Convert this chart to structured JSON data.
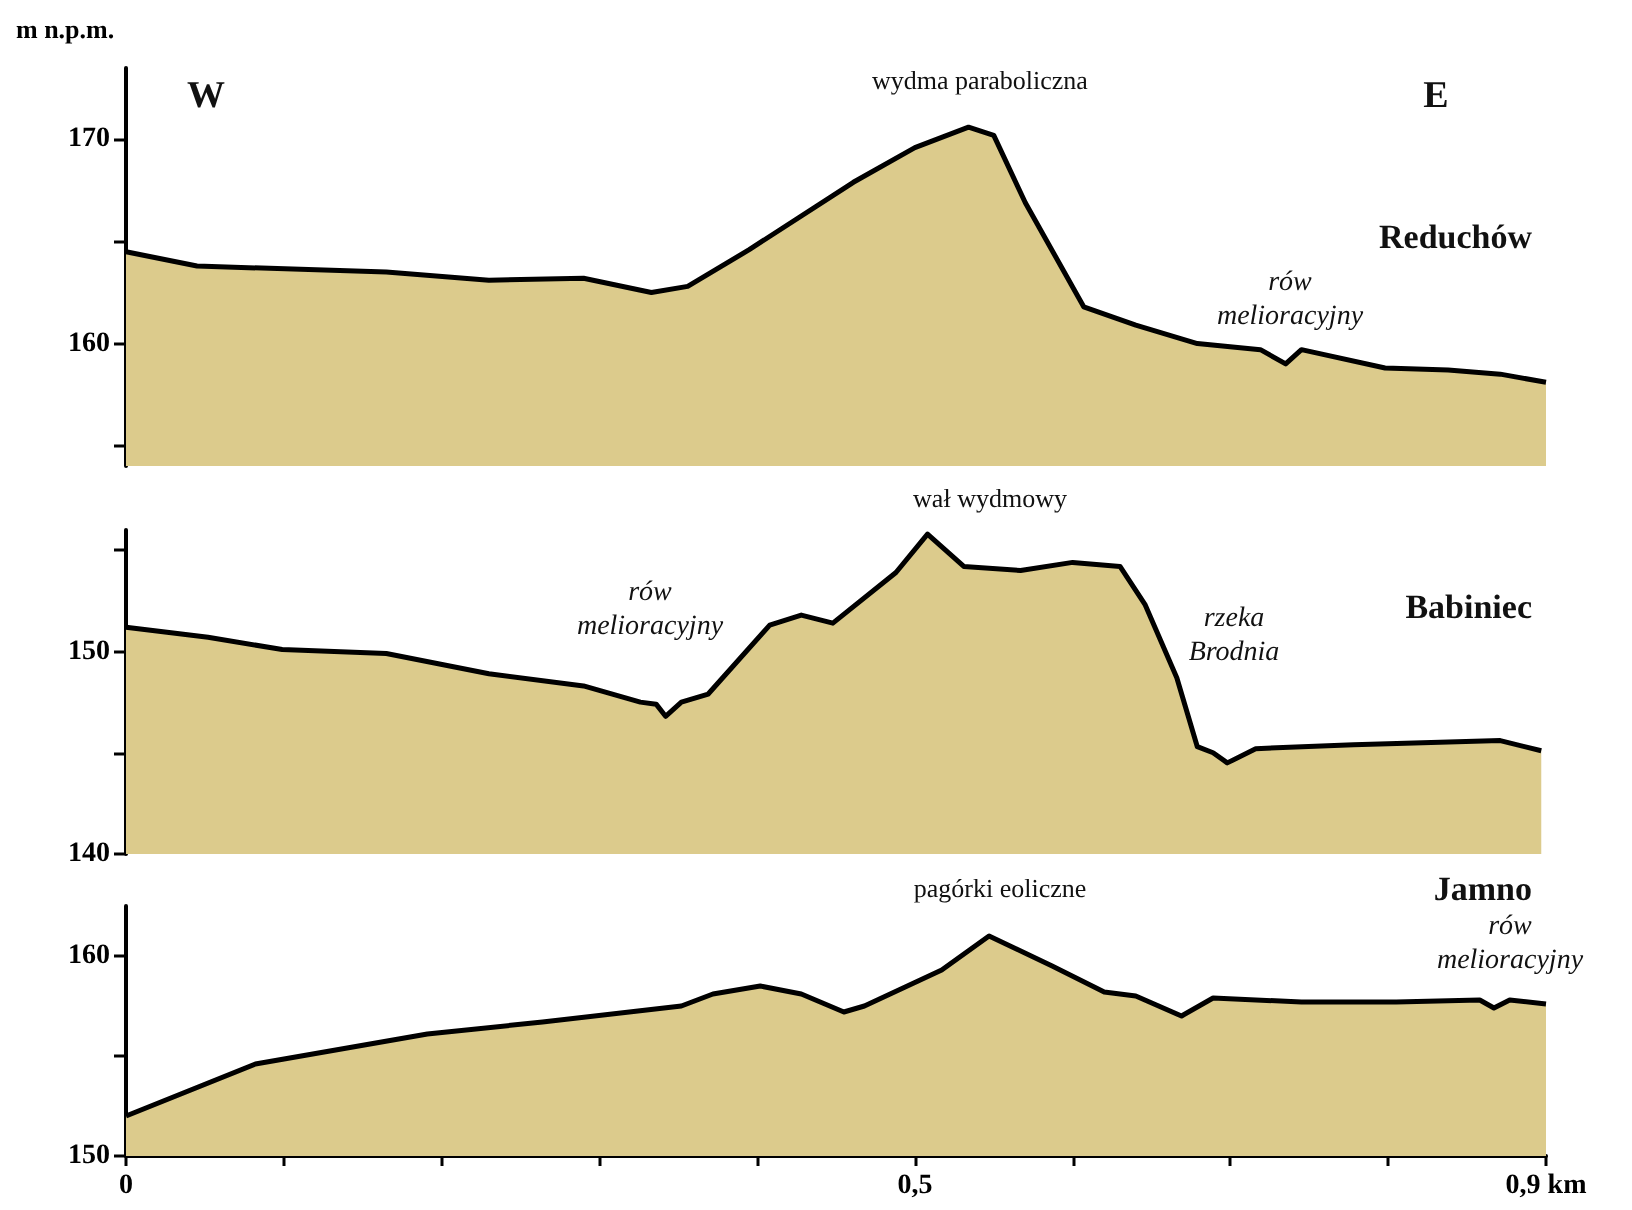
{
  "chart_data": [
    {
      "type": "area",
      "title": "Reduchów",
      "ylabel": "m n.p.m.",
      "tick_labels": "y",
      "color": "#dccb8c",
      "marker": "none",
      "grid": false,
      "x": [
        0,
        0.045,
        0.165,
        0.23,
        0.29,
        0.333,
        0.356,
        0.395,
        0.461,
        0.5,
        0.534,
        0.55,
        0.57,
        0.607,
        0.64,
        0.679,
        0.719,
        0.735,
        0.745,
        0.798,
        0.838,
        0.871,
        0.9
      ],
      "values": [
        164.5,
        163.8,
        163.5,
        163.1,
        163.2,
        162.5,
        162.8,
        164.6,
        167.9,
        169.6,
        170.6,
        170.2,
        166.9,
        161.8,
        160.9,
        160,
        159.7,
        159,
        159.7,
        158.8,
        158.7,
        158.5,
        158.1
      ],
      "xlim": [
        0,
        0.9
      ],
      "ylim": [
        154,
        173.5
      ],
      "yticks": [
        {
          "value": 155,
          "label": null
        },
        160,
        {
          "value": 165,
          "label": null
        },
        170
      ],
      "annotations": [
        "W",
        "E",
        "wydma paraboliczna",
        "rów\nmelioracyjny"
      ]
    },
    {
      "type": "area",
      "title": "Babiniec",
      "tick_labels": "y",
      "color": "#dccb8c",
      "marker": "none",
      "grid": false,
      "x": [
        0,
        0.052,
        0.099,
        0.165,
        0.23,
        0.29,
        0.326,
        0.336,
        0.342,
        0.352,
        0.369,
        0.408,
        0.428,
        0.448,
        0.488,
        0.508,
        0.531,
        0.567,
        0.6,
        0.63,
        0.646,
        0.666,
        0.679,
        0.689,
        0.698,
        0.716,
        0.778,
        0.871,
        0.897
      ],
      "values": [
        151.2,
        150.7,
        150.1,
        149.9,
        148.9,
        148.3,
        147.5,
        147.4,
        146.8,
        147.5,
        147.9,
        151.3,
        151.8,
        151.4,
        153.9,
        155.8,
        154.2,
        154,
        154.4,
        154.2,
        152.3,
        148.7,
        145.3,
        145,
        144.5,
        145.2,
        145.4,
        145.6,
        145.1
      ],
      "xlim": [
        0,
        0.9
      ],
      "ylim": [
        140,
        156
      ],
      "yticks": [
        140,
        {
          "value": 145,
          "label": null
        },
        150,
        {
          "value": 155,
          "label": null
        }
      ],
      "annotations": [
        "wał wydmowy",
        "rów\nmelioracyjny",
        "rzeka\nBrodnia"
      ]
    },
    {
      "type": "area",
      "title": "Jamno",
      "color": "#dccb8c",
      "marker": "none",
      "grid": false,
      "x": [
        0,
        0.082,
        0.191,
        0.264,
        0.352,
        0.372,
        0.402,
        0.428,
        0.455,
        0.468,
        0.517,
        0.547,
        0.587,
        0.62,
        0.64,
        0.669,
        0.689,
        0.745,
        0.805,
        0.858,
        0.867,
        0.877,
        0.9
      ],
      "values": [
        152,
        154.6,
        156.1,
        156.7,
        157.5,
        158.1,
        158.5,
        158.1,
        157.2,
        157.5,
        159.3,
        161,
        159.5,
        158.2,
        158,
        157,
        157.9,
        157.7,
        157.7,
        157.8,
        157.4,
        157.8,
        157.6
      ],
      "xlim": [
        0,
        0.9
      ],
      "xticks": [
        0,
        {
          "value": 0.1,
          "label": null
        },
        {
          "value": 0.2,
          "label": null
        },
        {
          "value": 0.3,
          "label": null
        },
        {
          "value": 0.4,
          "label": null
        },
        {
          "value": 0.5,
          "label": "0,5"
        },
        {
          "value": 0.6,
          "label": null
        },
        {
          "value": 0.7,
          "label": null
        },
        {
          "value": 0.8,
          "label": null
        },
        {
          "value": 0.9,
          "label": "0,9 km"
        }
      ],
      "ylim": [
        150,
        162.5
      ],
      "yticks": [
        150,
        {
          "value": 155,
          "label": null
        },
        160
      ],
      "annotations": [
        "pagórki eoliczne",
        "rów\nmelioracyjny"
      ]
    }
  ]
}
